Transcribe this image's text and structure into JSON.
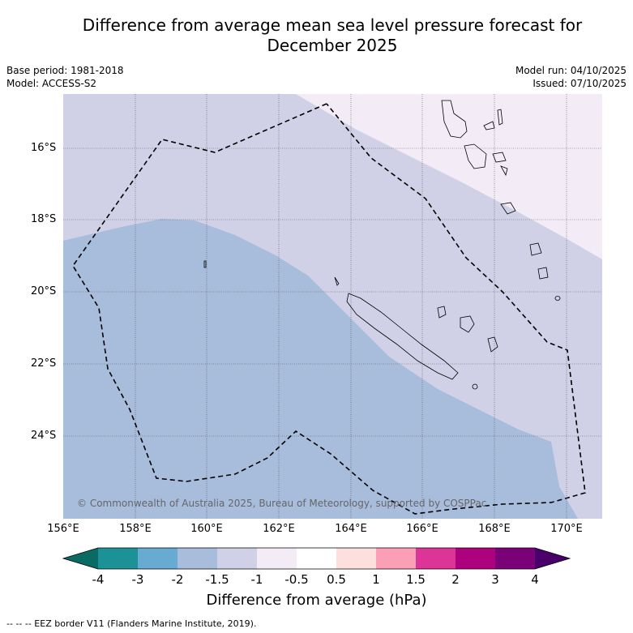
{
  "header": {
    "title_line1": "Difference from average mean sea level pressure forecast for",
    "title_line2": "December 2025",
    "base_period": "Base period: 1981-2018",
    "model": "Model: ACCESS-S2",
    "model_run": "Model run: 04/10/2025",
    "issued": "Issued: 07/10/2025"
  },
  "map": {
    "lat_labels": [
      "16°S",
      "18°S",
      "20°S",
      "22°S",
      "24°S"
    ],
    "lon_labels": [
      "156°E",
      "158°E",
      "160°E",
      "162°E",
      "164°E",
      "166°E",
      "168°E",
      "170°E"
    ],
    "copyright": "© Commonwealth of Australia 2025, Bureau of Meteorology, supported by COSPPac"
  },
  "colorbar": {
    "labels": [
      "-4",
      "-3",
      "-2",
      "-1.5",
      "-1",
      "-0.5",
      "0.5",
      "1",
      "1.5",
      "2",
      "3",
      "4"
    ],
    "colors": [
      "#0a6b64",
      "#1d9296",
      "#67abd2",
      "#a8bcdc",
      "#d0d1e6",
      "#f3ecf6",
      "#ffffff",
      "#fde0dd",
      "#fa9fb5",
      "#dd3497",
      "#ae017e",
      "#7a0177",
      "#49006a"
    ],
    "title": "Difference from average (hPa)"
  },
  "footer": {
    "eez_note": "--  --  -- EEZ border V11 (Flanders Marine Institute, 2019)."
  }
}
